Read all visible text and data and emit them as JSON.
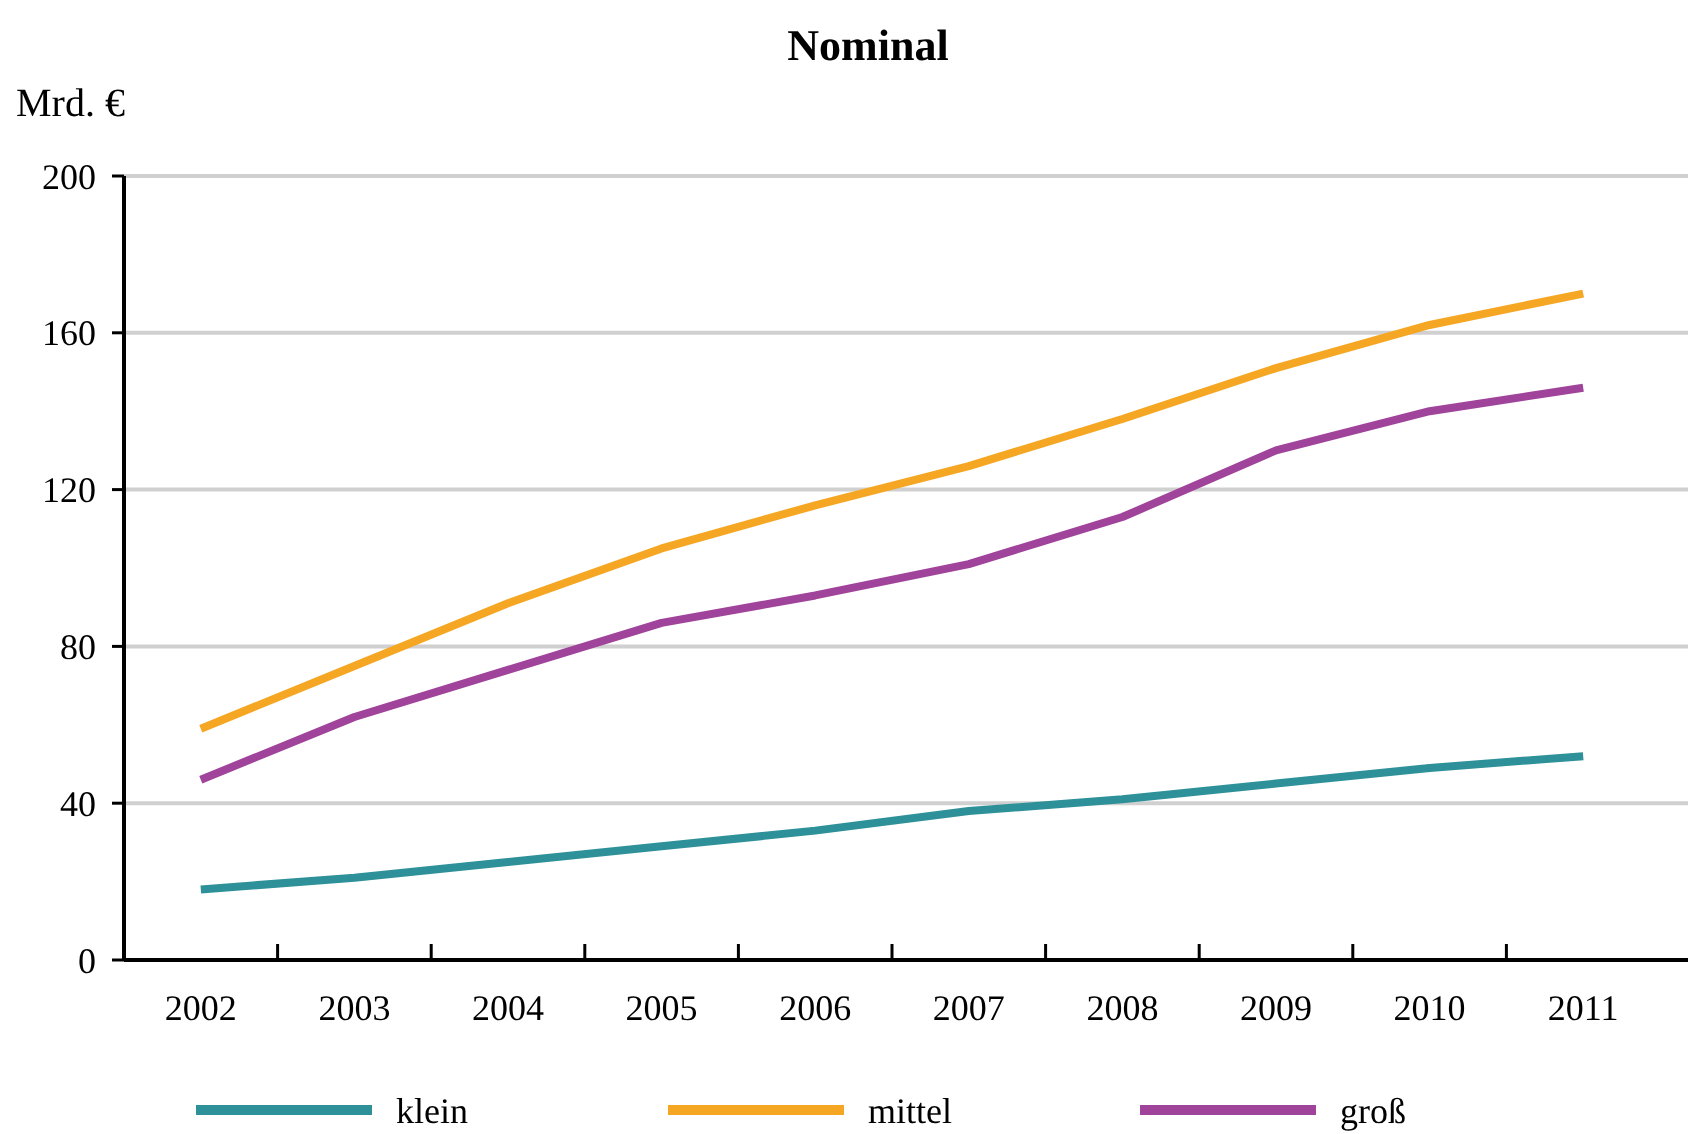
{
  "chart_data": {
    "type": "line",
    "title": "Nominal",
    "ylabel": "Mrd. €",
    "categories": [
      "2002",
      "2003",
      "2004",
      "2005",
      "2006",
      "2007",
      "2008",
      "2009",
      "2010",
      "2011"
    ],
    "series": [
      {
        "name": "klein",
        "color": "#2e9199",
        "values": [
          18,
          21,
          25,
          29,
          33,
          38,
          41,
          45,
          49,
          52
        ]
      },
      {
        "name": "mittel",
        "color": "#f5a623",
        "values": [
          59,
          75,
          91,
          105,
          116,
          126,
          138,
          151,
          162,
          170
        ]
      },
      {
        "name": "groß",
        "color": "#a0439a",
        "values": [
          46,
          62,
          74,
          86,
          93,
          101,
          113,
          130,
          140,
          146
        ]
      }
    ],
    "ylim": [
      0,
      200
    ],
    "yticks": [
      0,
      40,
      80,
      120,
      160,
      200
    ],
    "grid": "y",
    "legend": "bottom",
    "marker": "none",
    "line_style": "solid"
  }
}
